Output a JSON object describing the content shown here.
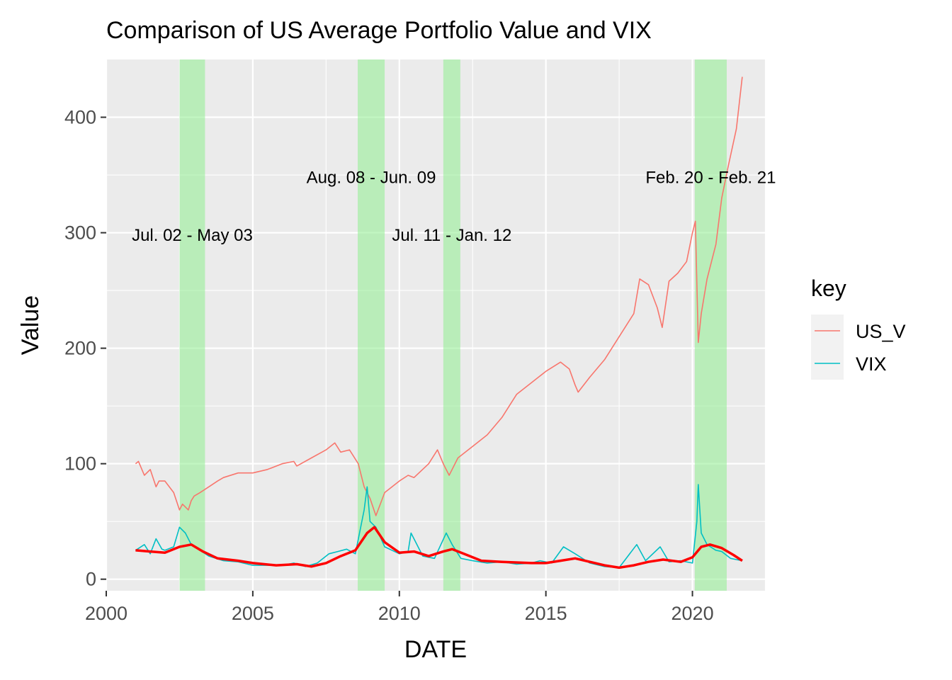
{
  "chart_data": {
    "type": "line",
    "title": "Comparison of US Average Portfolio Value and VIX",
    "xlabel": "DATE",
    "ylabel": "Value",
    "xlim": [
      2000.0,
      2022.5
    ],
    "ylim": [
      -10,
      450
    ],
    "x_ticks": [
      2000,
      2005,
      2010,
      2015,
      2020
    ],
    "y_ticks": [
      0,
      100,
      200,
      300,
      400
    ],
    "grid": true,
    "legend": {
      "title": "key",
      "position": "right",
      "entries": [
        {
          "name": "US_V",
          "color": "#F8766D"
        },
        {
          "name": "VIX",
          "color": "#00BFC4"
        }
      ]
    },
    "shaded_periods": [
      {
        "label": "Jul. 02 - May 03",
        "start": 2002.5,
        "end": 2003.37,
        "label_y": 298
      },
      {
        "label": "Aug. 08 - Jun. 09",
        "start": 2008.58,
        "end": 2009.5,
        "label_y": 348
      },
      {
        "label": "Jul. 11 - Jan. 12",
        "start": 2011.5,
        "end": 2012.08,
        "label_y": 298
      },
      {
        "label": "Feb. 20 - Feb. 21",
        "start": 2020.08,
        "end": 2021.17,
        "label_y": 348
      }
    ],
    "series": [
      {
        "name": "US_V",
        "color": "#F8766D",
        "x": [
          2001.0,
          2001.1,
          2001.3,
          2001.5,
          2001.7,
          2001.8,
          2002.0,
          2002.3,
          2002.5,
          2002.6,
          2002.8,
          2002.9,
          2003.0,
          2003.2,
          2003.5,
          2003.8,
          2004.0,
          2004.5,
          2005.0,
          2005.5,
          2006.0,
          2006.4,
          2006.5,
          2007.0,
          2007.5,
          2007.8,
          2008.0,
          2008.3,
          2008.6,
          2008.8,
          2009.0,
          2009.2,
          2009.5,
          2010.0,
          2010.3,
          2010.5,
          2011.0,
          2011.3,
          2011.5,
          2011.7,
          2012.0,
          2012.5,
          2013.0,
          2013.5,
          2014.0,
          2014.5,
          2015.0,
          2015.5,
          2015.8,
          2016.0,
          2016.1,
          2016.5,
          2017.0,
          2017.5,
          2018.0,
          2018.2,
          2018.5,
          2018.8,
          2018.97,
          2019.2,
          2019.5,
          2019.8,
          2020.0,
          2020.1,
          2020.2,
          2020.3,
          2020.5,
          2020.8,
          2021.0,
          2021.2,
          2021.5,
          2021.7
        ],
        "values": [
          100,
          102,
          90,
          95,
          80,
          85,
          85,
          75,
          60,
          65,
          60,
          68,
          72,
          75,
          80,
          85,
          88,
          92,
          92,
          95,
          100,
          102,
          98,
          105,
          112,
          118,
          110,
          112,
          100,
          80,
          70,
          55,
          75,
          85,
          90,
          88,
          100,
          112,
          100,
          90,
          105,
          115,
          125,
          140,
          160,
          170,
          180,
          188,
          182,
          168,
          162,
          175,
          190,
          210,
          230,
          260,
          255,
          235,
          218,
          258,
          265,
          275,
          300,
          310,
          205,
          230,
          260,
          290,
          330,
          355,
          390,
          435
        ]
      },
      {
        "name": "VIX",
        "color": "#00BFC4",
        "x": [
          2001.0,
          2001.3,
          2001.5,
          2001.7,
          2001.9,
          2002.0,
          2002.3,
          2002.5,
          2002.7,
          2002.9,
          2003.2,
          2003.5,
          2004.0,
          2004.5,
          2005.0,
          2005.5,
          2006.0,
          2006.4,
          2006.8,
          2007.2,
          2007.6,
          2007.9,
          2008.2,
          2008.5,
          2008.8,
          2008.9,
          2009.0,
          2009.2,
          2009.5,
          2010.0,
          2010.3,
          2010.4,
          2010.8,
          2011.2,
          2011.6,
          2011.8,
          2012.1,
          2012.5,
          2013.0,
          2013.5,
          2014.0,
          2014.5,
          2014.8,
          2015.2,
          2015.6,
          2016.0,
          2016.5,
          2017.0,
          2017.5,
          2018.1,
          2018.4,
          2018.9,
          2019.2,
          2019.6,
          2020.0,
          2020.15,
          2020.2,
          2020.3,
          2020.5,
          2020.8,
          2021.0,
          2021.3,
          2021.7
        ],
        "values": [
          25,
          30,
          22,
          35,
          26,
          25,
          28,
          45,
          40,
          30,
          25,
          20,
          16,
          15,
          12,
          12,
          12,
          14,
          11,
          14,
          22,
          24,
          26,
          22,
          60,
          80,
          50,
          45,
          28,
          22,
          24,
          40,
          20,
          18,
          40,
          30,
          18,
          16,
          14,
          15,
          13,
          14,
          16,
          14,
          28,
          22,
          14,
          11,
          10,
          30,
          16,
          28,
          15,
          16,
          14,
          50,
          82,
          40,
          30,
          25,
          24,
          18,
          16
        ]
      },
      {
        "name": "",
        "color": "#FF0000",
        "x": [
          2001.0,
          2001.5,
          2002.0,
          2002.5,
          2002.9,
          2003.3,
          2003.8,
          2004.5,
          2005.0,
          2005.8,
          2006.5,
          2007.0,
          2007.5,
          2008.0,
          2008.5,
          2008.9,
          2009.15,
          2009.5,
          2010.0,
          2010.5,
          2011.0,
          2011.5,
          2011.8,
          2012.2,
          2012.8,
          2013.5,
          2014.5,
          2015.0,
          2015.5,
          2016.0,
          2016.5,
          2017.0,
          2017.5,
          2018.0,
          2018.5,
          2019.0,
          2019.6,
          2020.0,
          2020.3,
          2020.6,
          2021.0,
          2021.4,
          2021.7
        ],
        "values": [
          25,
          24,
          23,
          28,
          30,
          24,
          18,
          16,
          14,
          12,
          13,
          11,
          14,
          20,
          25,
          40,
          45,
          32,
          23,
          24,
          20,
          24,
          26,
          22,
          16,
          15,
          14,
          14,
          16,
          18,
          15,
          12,
          10,
          12,
          15,
          17,
          15,
          19,
          28,
          30,
          27,
          21,
          16
        ]
      }
    ]
  }
}
